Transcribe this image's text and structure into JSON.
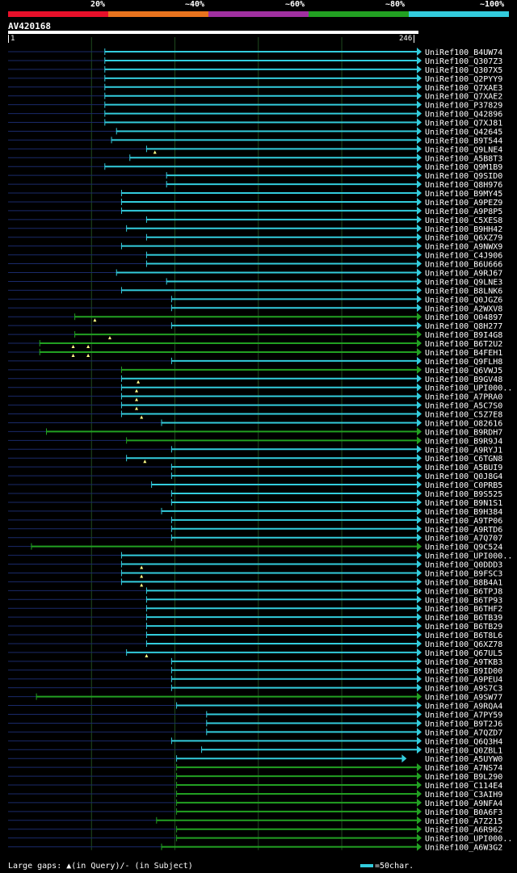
{
  "legend": {
    "labels": [
      "20%",
      "~40%",
      "~60%",
      "~80%",
      "~100%"
    ],
    "colors": [
      "#e8102a",
      "#e8731e",
      "#a030a0",
      "#22a022",
      "#33ccdd"
    ]
  },
  "query": {
    "name": "AV420168",
    "start": "1",
    "end": "246"
  },
  "colors": {
    "background": "#000000",
    "grid": "#1f4a1f",
    "unaligned": "#1a2a6a",
    "cyan": "#33ccdd",
    "green": "#22a022",
    "marker": "#ffff88"
  },
  "footer": {
    "gaps_text": "Large gaps: ▲(in Query)/- (in Subject)",
    "scale_text": "=50char."
  },
  "chart_data": {
    "type": "alignment",
    "query_length": 246,
    "hits": [
      {
        "label": "UniRef100_B4UW74",
        "start": 59,
        "end": 246,
        "color": "cyan",
        "markers": []
      },
      {
        "label": "UniRef100_Q307Z3",
        "start": 59,
        "end": 246,
        "color": "cyan",
        "markers": []
      },
      {
        "label": "UniRef100_Q307X5",
        "start": 59,
        "end": 246,
        "color": "cyan",
        "markers": []
      },
      {
        "label": "UniRef100_Q2PYY9",
        "start": 59,
        "end": 246,
        "color": "cyan",
        "markers": []
      },
      {
        "label": "UniRef100_Q7XAE3",
        "start": 59,
        "end": 246,
        "color": "cyan",
        "markers": []
      },
      {
        "label": "UniRef100_Q7XAE2",
        "start": 59,
        "end": 246,
        "color": "cyan",
        "markers": []
      },
      {
        "label": "UniRef100_P37829",
        "start": 59,
        "end": 246,
        "color": "cyan",
        "markers": []
      },
      {
        "label": "UniRef100_Q42896",
        "start": 59,
        "end": 246,
        "color": "cyan",
        "markers": []
      },
      {
        "label": "UniRef100_Q7XJ81",
        "start": 59,
        "end": 246,
        "color": "cyan",
        "markers": []
      },
      {
        "label": "UniRef100_Q42645",
        "start": 66,
        "end": 246,
        "color": "cyan",
        "markers": []
      },
      {
        "label": "UniRef100_B9T544",
        "start": 63,
        "end": 246,
        "color": "cyan",
        "markers": []
      },
      {
        "label": "UniRef100_Q9LNE4",
        "start": 84,
        "end": 246,
        "color": "cyan",
        "markers": [
          89
        ]
      },
      {
        "label": "UniRef100_A5B8T3",
        "start": 74,
        "end": 246,
        "color": "cyan",
        "markers": []
      },
      {
        "label": "UniRef100_Q9M1B9",
        "start": 59,
        "end": 246,
        "color": "cyan",
        "markers": []
      },
      {
        "label": "UniRef100_Q9SID0",
        "start": 96,
        "end": 246,
        "color": "cyan",
        "markers": []
      },
      {
        "label": "UniRef100_Q8H976",
        "start": 96,
        "end": 246,
        "color": "cyan",
        "markers": []
      },
      {
        "label": "UniRef100_B9MY45",
        "start": 69,
        "end": 246,
        "color": "cyan",
        "markers": []
      },
      {
        "label": "UniRef100_A9PEZ9",
        "start": 69,
        "end": 246,
        "color": "cyan",
        "markers": []
      },
      {
        "label": "UniRef100_A9P8P5",
        "start": 69,
        "end": 246,
        "color": "cyan",
        "markers": []
      },
      {
        "label": "UniRef100_C5XES8",
        "start": 84,
        "end": 246,
        "color": "cyan",
        "markers": []
      },
      {
        "label": "UniRef100_B9HH42",
        "start": 72,
        "end": 246,
        "color": "cyan",
        "markers": []
      },
      {
        "label": "UniRef100_Q6XZ79",
        "start": 84,
        "end": 246,
        "color": "cyan",
        "markers": []
      },
      {
        "label": "UniRef100_A9NWX9",
        "start": 69,
        "end": 246,
        "color": "cyan",
        "markers": []
      },
      {
        "label": "UniRef100_C4J906",
        "start": 84,
        "end": 246,
        "color": "cyan",
        "markers": []
      },
      {
        "label": "UniRef100_B6U666",
        "start": 84,
        "end": 246,
        "color": "cyan",
        "markers": []
      },
      {
        "label": "UniRef100_A9RJ67",
        "start": 66,
        "end": 246,
        "color": "cyan",
        "markers": []
      },
      {
        "label": "UniRef100_Q9LNE3",
        "start": 96,
        "end": 246,
        "color": "cyan",
        "markers": []
      },
      {
        "label": "UniRef100_B8LNK6",
        "start": 69,
        "end": 246,
        "color": "cyan",
        "markers": []
      },
      {
        "label": "UniRef100_Q0JGZ6",
        "start": 99,
        "end": 246,
        "color": "cyan",
        "markers": []
      },
      {
        "label": "UniRef100_A2WXV8",
        "start": 99,
        "end": 246,
        "color": "cyan",
        "markers": []
      },
      {
        "label": "UniRef100_O04897",
        "start": 41,
        "end": 246,
        "color": "green",
        "markers": [
          53
        ]
      },
      {
        "label": "UniRef100_Q8H277",
        "start": 99,
        "end": 246,
        "color": "cyan",
        "markers": []
      },
      {
        "label": "UniRef100_B9I4G8",
        "start": 41,
        "end": 246,
        "color": "green",
        "markers": [
          62
        ]
      },
      {
        "label": "UniRef100_B6T2U2",
        "start": 20,
        "end": 246,
        "color": "green",
        "markers": [
          40,
          49
        ]
      },
      {
        "label": "UniRef100_B4FEH1",
        "start": 20,
        "end": 246,
        "color": "green",
        "markers": [
          40,
          49
        ]
      },
      {
        "label": "UniRef100_Q9FLH8",
        "start": 99,
        "end": 246,
        "color": "cyan",
        "markers": []
      },
      {
        "label": "UniRef100_Q6VWJ5",
        "start": 69,
        "end": 246,
        "color": "green",
        "markers": []
      },
      {
        "label": "UniRef100_B9GV48",
        "start": 69,
        "end": 246,
        "color": "cyan",
        "markers": [
          79
        ]
      },
      {
        "label": "UniRef100_UPI000..",
        "start": 69,
        "end": 246,
        "color": "cyan",
        "markers": [
          78
        ]
      },
      {
        "label": "UniRef100_A7PRA0",
        "start": 69,
        "end": 246,
        "color": "cyan",
        "markers": [
          78
        ]
      },
      {
        "label": "UniRef100_A5C7S0",
        "start": 69,
        "end": 246,
        "color": "cyan",
        "markers": [
          78
        ]
      },
      {
        "label": "UniRef100_C5Z7E8",
        "start": 69,
        "end": 246,
        "color": "cyan",
        "markers": [
          81
        ]
      },
      {
        "label": "UniRef100_O82616",
        "start": 93,
        "end": 246,
        "color": "cyan",
        "markers": []
      },
      {
        "label": "UniRef100_B9RDH7",
        "start": 24,
        "end": 246,
        "color": "green",
        "markers": []
      },
      {
        "label": "UniRef100_B9R9J4",
        "start": 72,
        "end": 246,
        "color": "green",
        "markers": []
      },
      {
        "label": "UniRef100_A9RYJ1",
        "start": 99,
        "end": 246,
        "color": "cyan",
        "markers": []
      },
      {
        "label": "UniRef100_C6TGN8",
        "start": 72,
        "end": 246,
        "color": "cyan",
        "markers": [
          83
        ]
      },
      {
        "label": "UniRef100_A5BUI9",
        "start": 99,
        "end": 246,
        "color": "cyan",
        "markers": []
      },
      {
        "label": "UniRef100_Q0J8G4",
        "start": 99,
        "end": 246,
        "color": "cyan",
        "markers": []
      },
      {
        "label": "UniRef100_C0PRB5",
        "start": 87,
        "end": 246,
        "color": "cyan",
        "markers": []
      },
      {
        "label": "UniRef100_B9S525",
        "start": 99,
        "end": 246,
        "color": "cyan",
        "markers": []
      },
      {
        "label": "UniRef100_B9N1S1",
        "start": 99,
        "end": 246,
        "color": "cyan",
        "markers": []
      },
      {
        "label": "UniRef100_B9H384",
        "start": 93,
        "end": 246,
        "color": "cyan",
        "markers": []
      },
      {
        "label": "UniRef100_A9TP06",
        "start": 99,
        "end": 246,
        "color": "cyan",
        "markers": []
      },
      {
        "label": "UniRef100_A9RTD6",
        "start": 99,
        "end": 246,
        "color": "cyan",
        "markers": []
      },
      {
        "label": "UniRef100_A7Q707",
        "start": 99,
        "end": 246,
        "color": "cyan",
        "markers": []
      },
      {
        "label": "UniRef100_Q9C524",
        "start": 15,
        "end": 246,
        "color": "green",
        "markers": []
      },
      {
        "label": "UniRef100_UPI000..",
        "start": 69,
        "end": 246,
        "color": "cyan",
        "markers": []
      },
      {
        "label": "UniRef100_Q0DDD3",
        "start": 69,
        "end": 246,
        "color": "cyan",
        "markers": [
          81
        ]
      },
      {
        "label": "UniRef100_B9FSC3",
        "start": 69,
        "end": 246,
        "color": "cyan",
        "markers": [
          81
        ]
      },
      {
        "label": "UniRef100_B8B4A1",
        "start": 69,
        "end": 246,
        "color": "cyan",
        "markers": [
          81
        ]
      },
      {
        "label": "UniRef100_B6TPJ8",
        "start": 84,
        "end": 246,
        "color": "cyan",
        "markers": []
      },
      {
        "label": "UniRef100_B6TP93",
        "start": 84,
        "end": 246,
        "color": "cyan",
        "markers": []
      },
      {
        "label": "UniRef100_B6THF2",
        "start": 84,
        "end": 246,
        "color": "cyan",
        "markers": []
      },
      {
        "label": "UniRef100_B6TB39",
        "start": 84,
        "end": 246,
        "color": "cyan",
        "markers": []
      },
      {
        "label": "UniRef100_B6TB29",
        "start": 84,
        "end": 246,
        "color": "cyan",
        "markers": []
      },
      {
        "label": "UniRef100_B6T8L6",
        "start": 84,
        "end": 246,
        "color": "cyan",
        "markers": []
      },
      {
        "label": "UniRef100_Q6XZ78",
        "start": 84,
        "end": 246,
        "color": "cyan",
        "markers": []
      },
      {
        "label": "UniRef100_Q67UL5",
        "start": 72,
        "end": 246,
        "color": "cyan",
        "markers": [
          84
        ]
      },
      {
        "label": "UniRef100_A9TKB3",
        "start": 99,
        "end": 246,
        "color": "cyan",
        "markers": []
      },
      {
        "label": "UniRef100_B9ID00",
        "start": 99,
        "end": 246,
        "color": "cyan",
        "markers": []
      },
      {
        "label": "UniRef100_A9PEU4",
        "start": 99,
        "end": 246,
        "color": "cyan",
        "markers": []
      },
      {
        "label": "UniRef100_A9S7C3",
        "start": 99,
        "end": 246,
        "color": "cyan",
        "markers": []
      },
      {
        "label": "UniRef100_A9SW77",
        "start": 18,
        "end": 246,
        "color": "green",
        "markers": []
      },
      {
        "label": "UniRef100_A9RQA4",
        "start": 102,
        "end": 246,
        "color": "cyan",
        "markers": []
      },
      {
        "label": "UniRef100_A7PY59",
        "start": 120,
        "end": 246,
        "color": "cyan",
        "markers": []
      },
      {
        "label": "UniRef100_B9T2J6",
        "start": 120,
        "end": 246,
        "color": "cyan",
        "markers": []
      },
      {
        "label": "UniRef100_A7QZD7",
        "start": 120,
        "end": 246,
        "color": "cyan",
        "markers": []
      },
      {
        "label": "UniRef100_Q6Q3H4",
        "start": 99,
        "end": 246,
        "color": "cyan",
        "markers": []
      },
      {
        "label": "UniRef100_Q0ZBL1",
        "start": 117,
        "end": 246,
        "color": "cyan",
        "markers": []
      },
      {
        "label": "UniRef100_A5UYW0",
        "start": 102,
        "end": 237,
        "color": "cyan",
        "markers": []
      },
      {
        "label": "UniRef100_A7NS74",
        "start": 102,
        "end": 246,
        "color": "green",
        "markers": []
      },
      {
        "label": "UniRef100_B9L290",
        "start": 102,
        "end": 246,
        "color": "green",
        "markers": []
      },
      {
        "label": "UniRef100_C114E4",
        "start": 102,
        "end": 246,
        "color": "green",
        "markers": []
      },
      {
        "label": "UniRef100_C3AIH9",
        "start": 102,
        "end": 246,
        "color": "green",
        "markers": []
      },
      {
        "label": "UniRef100_A9NFA4",
        "start": 102,
        "end": 246,
        "color": "green",
        "markers": []
      },
      {
        "label": "UniRef100_B0A6F3",
        "start": 102,
        "end": 246,
        "color": "green",
        "markers": []
      },
      {
        "label": "UniRef100_A7Z215",
        "start": 90,
        "end": 246,
        "color": "green",
        "markers": []
      },
      {
        "label": "UniRef100_A6R962",
        "start": 102,
        "end": 246,
        "color": "green",
        "markers": []
      },
      {
        "label": "UniRef100_UPI000..",
        "start": 102,
        "end": 246,
        "color": "green",
        "markers": []
      },
      {
        "label": "UniRef100_A6W3G2",
        "start": 93,
        "end": 246,
        "color": "green",
        "markers": []
      }
    ]
  }
}
